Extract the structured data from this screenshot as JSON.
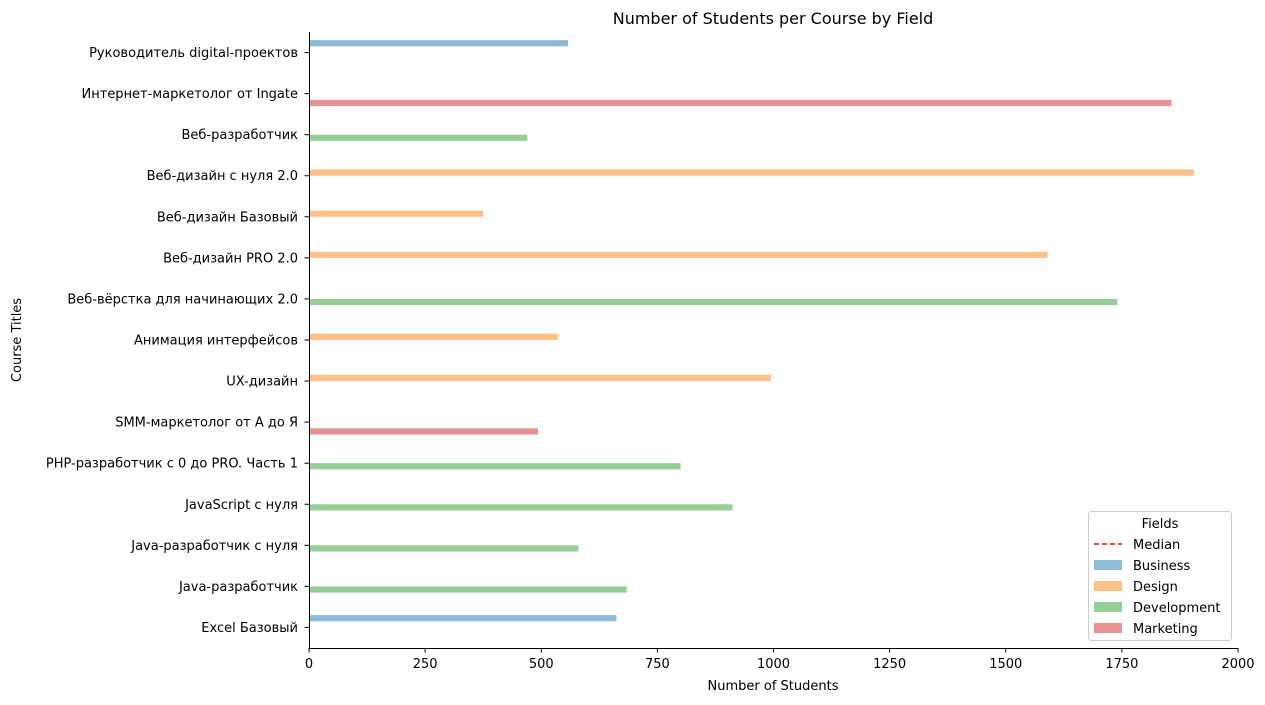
{
  "chart_data": {
    "type": "bar",
    "orientation": "horizontal",
    "title": "Number of Students per Course by Field",
    "xlabel": "Number of Students",
    "ylabel": "Course Titles",
    "xlim": [
      0,
      2000
    ],
    "xticks": [
      0,
      250,
      500,
      750,
      1000,
      1250,
      1500,
      1750,
      2000
    ],
    "grid": false,
    "legend": {
      "title": "Fields",
      "position": "lower-right",
      "median_label": "Median",
      "median_color": "#ff0000",
      "entries": [
        {
          "name": "Business",
          "color": "#8fbbd9"
        },
        {
          "name": "Design",
          "color": "#ffbf86"
        },
        {
          "name": "Development",
          "color": "#95cf95"
        },
        {
          "name": "Marketing",
          "color": "#ea9293"
        }
      ]
    },
    "categories": [
      "Руководитель digital-проектов",
      "Интернет-маркетолог от Ingate",
      "Веб-разработчик",
      "Веб-дизайн с нуля 2.0",
      "Веб-дизайн Базовый",
      "Веб-дизайн PRO 2.0",
      "Веб-вёрстка для начинающих 2.0",
      "Анимация интерфейсов",
      "UX-дизайн",
      "SMM-маркетолог от А до Я",
      "PHP-разработчик с 0 до PRO. Часть 1",
      "JavaScript с нуля",
      "Java-разработчик с нуля",
      "Java-разработчик",
      "Excel Базовый"
    ],
    "series": [
      {
        "name": "Business",
        "color": "#8fbbd9",
        "values": [
          558,
          null,
          null,
          null,
          null,
          null,
          null,
          null,
          null,
          null,
          null,
          null,
          null,
          null,
          662
        ]
      },
      {
        "name": "Design",
        "color": "#ffbf86",
        "values": [
          null,
          null,
          null,
          1905,
          375,
          1590,
          null,
          536,
          995,
          null,
          null,
          null,
          null,
          null,
          null
        ]
      },
      {
        "name": "Development",
        "color": "#95cf95",
        "values": [
          null,
          null,
          470,
          null,
          null,
          null,
          1740,
          null,
          null,
          null,
          800,
          912,
          580,
          684,
          null
        ]
      },
      {
        "name": "Marketing",
        "color": "#ea9293",
        "values": [
          null,
          1857,
          null,
          null,
          null,
          null,
          null,
          null,
          null,
          493,
          null,
          null,
          null,
          null,
          null
        ]
      }
    ]
  }
}
